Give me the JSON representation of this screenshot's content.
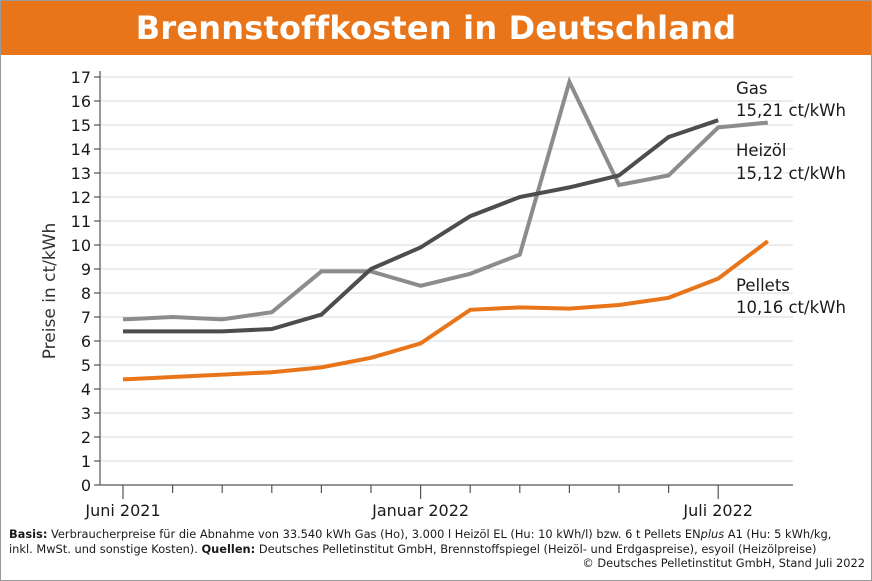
{
  "title": "Brennstoffkosten in Deutschland",
  "chart_data": {
    "type": "line",
    "title": "Brennstoffkosten in Deutschland",
    "ylabel": "Preise in ct/kWh",
    "xlabel": "",
    "ylim": [
      0,
      17
    ],
    "yticks": [
      0,
      1,
      2,
      3,
      4,
      5,
      6,
      7,
      8,
      9,
      10,
      11,
      12,
      13,
      14,
      15,
      16,
      17
    ],
    "x_tick_labels": [
      "Juni 2021",
      "Januar 2022",
      "Juli 2022"
    ],
    "x_tick_label_index": [
      0,
      6,
      12
    ],
    "num_points": 14,
    "series": [
      {
        "name": "Gas",
        "end_label": "15,21 ct/kWh",
        "color": "#4d4d4d",
        "values": [
          6.4,
          6.4,
          6.4,
          6.5,
          7.1,
          9.0,
          9.9,
          11.2,
          12.0,
          12.4,
          12.9,
          14.5,
          15.2,
          null
        ]
      },
      {
        "name": "Heizöl",
        "end_label": "15,12 ct/kWh",
        "color": "#8c8c8c",
        "values": [
          6.9,
          7.0,
          6.9,
          7.2,
          8.9,
          8.9,
          8.3,
          8.8,
          9.6,
          16.8,
          12.5,
          12.9,
          14.9,
          15.1
        ]
      },
      {
        "name": "Pellets",
        "end_label": "10,16 ct/kWh",
        "color": "#e8751a",
        "values": [
          4.4,
          4.5,
          4.6,
          4.7,
          4.9,
          5.3,
          5.9,
          7.3,
          7.4,
          7.35,
          7.5,
          7.8,
          8.6,
          10.16
        ]
      }
    ],
    "grid": true,
    "legend": "labels at line ends (right)"
  },
  "footer": {
    "basis_label": "Basis:",
    "basis_text_1": "Verbraucherpreise für die Abnahme von 33.540 kWh Gas (Ho), 3.000 l Heizöl EL (Hu: 10 kWh/l) bzw. 6 t Pellets EN",
    "basis_text_plus": "plus",
    "basis_text_2": " A1 (Hu: 5 kWh/kg,",
    "line2_text": "inkl. MwSt. und sonstige Kosten).",
    "sources_label": "Quellen:",
    "sources_text": "Deutsches Pelletinstitut GmbH, Brennstoffspiegel (Heizöl- und Erdgaspreise), esyoil (Heizölpreise)",
    "copyright": "© Deutsches Pelletinstitut GmbH, Stand Juli 2022"
  }
}
